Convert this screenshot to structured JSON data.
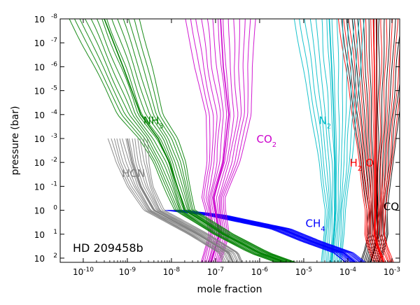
{
  "chart_data": {
    "type": "line",
    "title": "",
    "annotation": "HD 209458b",
    "xlabel": "mole fraction",
    "ylabel": "pressure (bar)",
    "xscale": "log",
    "yscale": "log",
    "y_inverted": true,
    "xlim": [
      3e-11,
      0.0015
    ],
    "ylim": [
      150,
      1e-08
    ],
    "grid": false,
    "legend": "none (species labeled inline)",
    "xticks": [
      {
        "base": "10",
        "exp": "-10",
        "value": 1e-10
      },
      {
        "base": "10",
        "exp": "-9",
        "value": 1e-09
      },
      {
        "base": "10",
        "exp": "-8",
        "value": 1e-08
      },
      {
        "base": "10",
        "exp": "-7",
        "value": 1e-07
      },
      {
        "base": "10",
        "exp": "-6",
        "value": 1e-06
      },
      {
        "base": "10",
        "exp": "-5",
        "value": 1e-05
      },
      {
        "base": "10",
        "exp": "-4",
        "value": 0.0001
      },
      {
        "base": "10",
        "exp": "-3",
        "value": 0.001
      }
    ],
    "yticks": [
      {
        "base": "10",
        "exp": "-8",
        "value": 1e-08
      },
      {
        "base": "10",
        "exp": "-7",
        "value": 1e-07
      },
      {
        "base": "10",
        "exp": "-6",
        "value": 1e-06
      },
      {
        "base": "10",
        "exp": "-5",
        "value": 1e-05
      },
      {
        "base": "10",
        "exp": "-4",
        "value": 0.0001
      },
      {
        "base": "10",
        "exp": "-3",
        "value": 0.001
      },
      {
        "base": "10",
        "exp": "-2",
        "value": 0.01
      },
      {
        "base": "10",
        "exp": "-1",
        "value": 0.1
      },
      {
        "base": "10",
        "exp": "0",
        "value": 1
      },
      {
        "base": "10",
        "exp": "1",
        "value": 10
      },
      {
        "base": "10",
        "exp": "2",
        "value": 100
      }
    ],
    "series": [
      {
        "name": "CO",
        "label_main": "CO",
        "label_sub": "",
        "color": "#000000",
        "points": [
          [
            0.00045,
            1e-08
          ],
          [
            0.00045,
            0.001
          ],
          [
            0.00046,
            1
          ],
          [
            0.00048,
            10
          ],
          [
            0.0004,
            50
          ],
          [
            0.00033,
            150
          ]
        ]
      },
      {
        "name": "H2O",
        "label_main": "H",
        "label_sub": "2",
        "label_tail": "O",
        "color": "#ff0000",
        "points": [
          [
            0.00038,
            1e-08
          ],
          [
            0.0004,
            1e-06
          ],
          [
            0.00042,
            0.001
          ],
          [
            0.00042,
            1
          ],
          [
            0.0004,
            10
          ],
          [
            0.00046,
            30
          ],
          [
            0.00065,
            150
          ]
        ]
      },
      {
        "name": "N2",
        "label_main": "N",
        "label_sub": "2",
        "color": "#00bcc8",
        "points": [
          [
            3.8e-05,
            1e-08
          ],
          [
            4.3e-05,
            1e-06
          ],
          [
            4.8e-05,
            0.0001
          ],
          [
            5.2e-05,
            0.01
          ],
          [
            5.2e-05,
            1
          ],
          [
            4.8e-05,
            10
          ],
          [
            4.3e-05,
            150
          ]
        ]
      },
      {
        "name": "CH4",
        "label_main": "CH",
        "label_sub": "4",
        "color": "#0000ff",
        "points": [
          [
            1.2e-08,
            1
          ],
          [
            1e-07,
            1.6
          ],
          [
            5e-07,
            3
          ],
          [
            3e-06,
            6
          ],
          [
            1.5e-05,
            20
          ],
          [
            8e-05,
            60
          ],
          [
            0.00015,
            150
          ]
        ]
      },
      {
        "name": "CO2",
        "label_main": "CO",
        "label_sub": "2",
        "color": "#cc00cc",
        "points": [
          [
            1.3e-07,
            1e-08
          ],
          [
            1.5e-07,
            1e-06
          ],
          [
            2e-07,
            0.0001
          ],
          [
            1.5e-07,
            0.01
          ],
          [
            9e-08,
            0.3
          ],
          [
            1.2e-07,
            10
          ],
          [
            8e-08,
            150
          ]
        ]
      },
      {
        "name": "NH3",
        "label_main": "NH",
        "label_sub": "3",
        "color": "#008000",
        "points": [
          [
            3e-10,
            1e-08
          ],
          [
            8e-10,
            1e-06
          ],
          [
            2e-09,
            0.0001
          ],
          [
            5e-09,
            0.001
          ],
          [
            9e-09,
            0.01
          ],
          [
            2e-08,
            1
          ],
          [
            1.5e-07,
            10
          ],
          [
            1e-06,
            60
          ],
          [
            4e-06,
            150
          ]
        ]
      },
      {
        "name": "HCN",
        "label_main": "HCN",
        "label_sub": "",
        "color": "#808080",
        "points": [
          [
            1e-09,
            0.001
          ],
          [
            1.3e-09,
            0.01
          ],
          [
            2e-09,
            0.1
          ],
          [
            4e-09,
            1
          ],
          [
            4e-08,
            10
          ],
          [
            2e-07,
            60
          ],
          [
            2.5e-07,
            150
          ]
        ]
      }
    ]
  }
}
